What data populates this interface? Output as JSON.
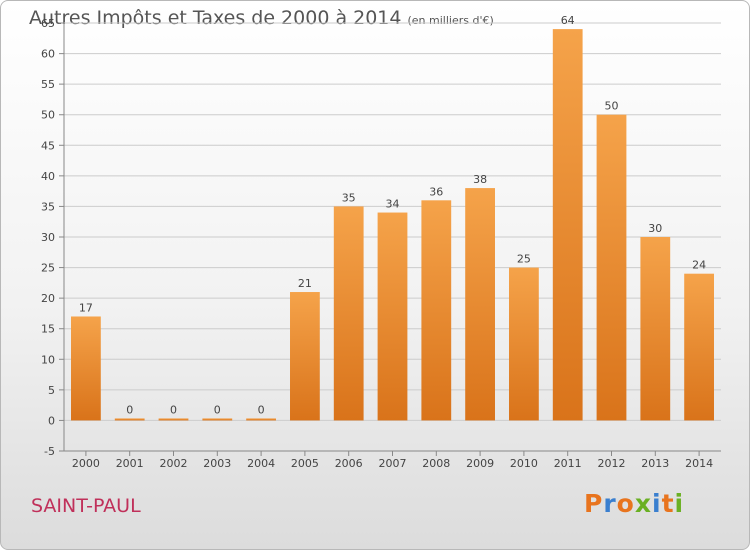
{
  "header": {
    "title": "Autres Impôts et Taxes de 2000 à 2014",
    "unit": "(en milliers d'€)"
  },
  "footer": {
    "city": "SAINT-PAUL",
    "logo": "Proxiti"
  },
  "colors": {
    "bar_top": "#f5a34a",
    "bar_bottom": "#d9731a",
    "grid": "#cccccc",
    "city": "#c0305a",
    "logo": [
      "#e8741e",
      "#3a7fcf",
      "#e8741e",
      "#6ab023",
      "#3a7fcf",
      "#e8741e",
      "#6ab023"
    ]
  },
  "chart_data": {
    "type": "bar",
    "title": "Autres Impôts et Taxes de 2000 à 2014",
    "subtitle": "(en milliers d'€)",
    "categories": [
      "2000",
      "2001",
      "2002",
      "2003",
      "2004",
      "2005",
      "2006",
      "2007",
      "2008",
      "2009",
      "2010",
      "2011",
      "2012",
      "2013",
      "2014"
    ],
    "values": [
      17,
      0,
      0,
      0,
      0,
      21,
      35,
      34,
      36,
      38,
      25,
      64,
      50,
      30,
      24
    ],
    "data_labels": [
      "17",
      "0",
      "0",
      "0",
      "0",
      "21",
      "35",
      "34",
      "36",
      "38",
      "25",
      "64",
      "50",
      "30",
      "24"
    ],
    "y_ticks": [
      "-5",
      "0",
      "5",
      "10",
      "15",
      "20",
      "25",
      "30",
      "35",
      "40",
      "45",
      "50",
      "55",
      "60",
      "65"
    ],
    "ylim": [
      -5,
      65
    ],
    "grid": true,
    "legend": "none"
  }
}
